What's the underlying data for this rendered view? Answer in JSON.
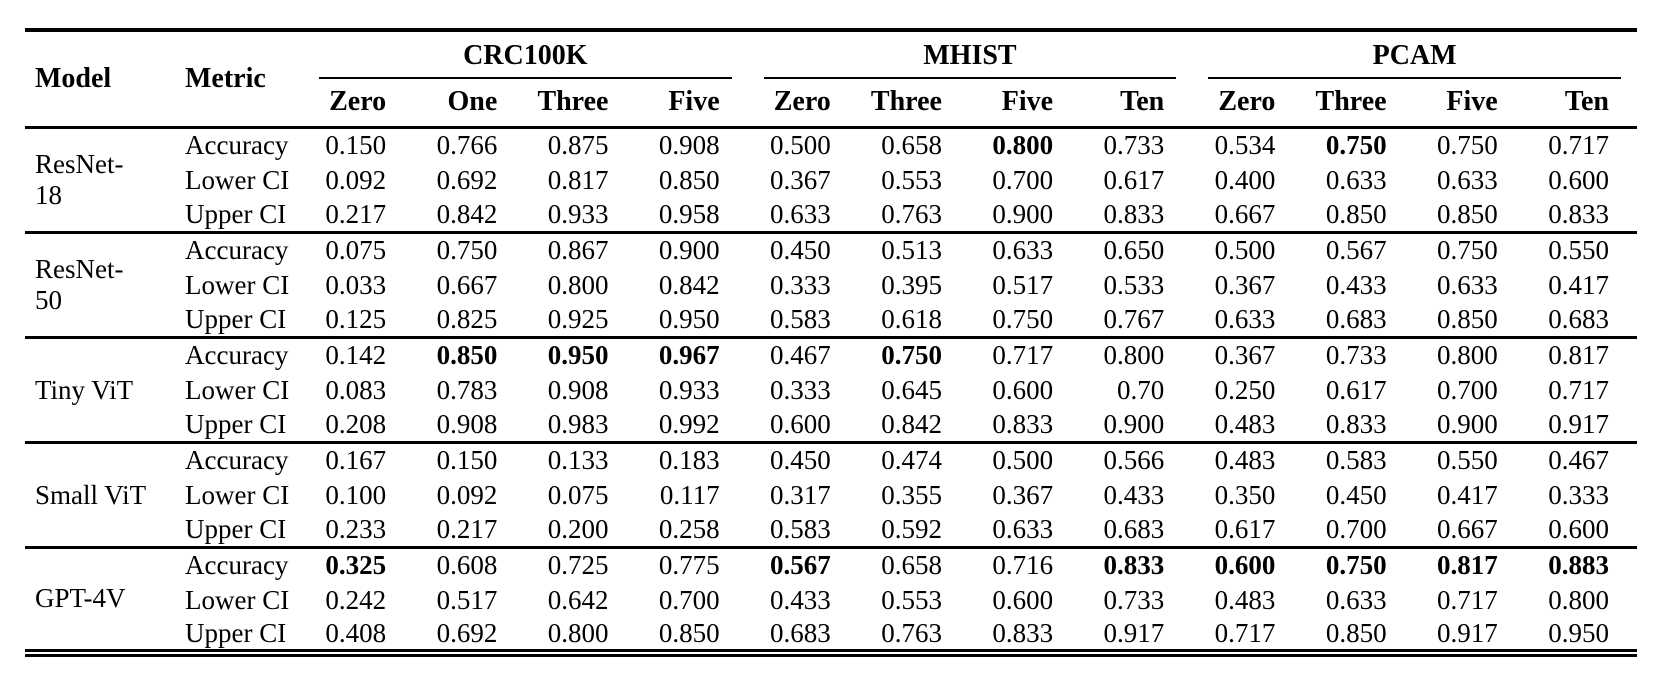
{
  "page": {
    "background_color": "#ffffff",
    "text_color": "#000000"
  },
  "table": {
    "header": {
      "model": "Model",
      "metric": "Metric"
    },
    "groups": [
      {
        "label": "CRC100K",
        "shots": [
          "Zero",
          "One",
          "Three",
          "Five"
        ]
      },
      {
        "label": "MHIST",
        "shots": [
          "Zero",
          "Three",
          "Five",
          "Ten"
        ]
      },
      {
        "label": "PCAM",
        "shots": [
          "Zero",
          "Three",
          "Five",
          "Ten"
        ]
      }
    ],
    "blocks": [
      {
        "model": "ResNet-18",
        "rows": [
          {
            "metric": "Accuracy",
            "values": [
              "0.150",
              "0.766",
              "0.875",
              "0.908",
              "0.500",
              "0.658",
              "0.800",
              "0.733",
              "0.534",
              "0.750",
              "0.750",
              "0.717"
            ],
            "bold": [
              6,
              9
            ]
          },
          {
            "metric": "Lower CI",
            "values": [
              "0.092",
              "0.692",
              "0.817",
              "0.850",
              "0.367",
              "0.553",
              "0.700",
              "0.617",
              "0.400",
              "0.633",
              "0.633",
              "0.600"
            ],
            "bold": []
          },
          {
            "metric": "Upper CI",
            "values": [
              "0.217",
              "0.842",
              "0.933",
              "0.958",
              "0.633",
              "0.763",
              "0.900",
              "0.833",
              "0.667",
              "0.850",
              "0.850",
              "0.833"
            ],
            "bold": []
          }
        ]
      },
      {
        "model": "ResNet-50",
        "rows": [
          {
            "metric": "Accuracy",
            "values": [
              "0.075",
              "0.750",
              "0.867",
              "0.900",
              "0.450",
              "0.513",
              "0.633",
              "0.650",
              "0.500",
              "0.567",
              "0.750",
              "0.550"
            ],
            "bold": []
          },
          {
            "metric": "Lower CI",
            "values": [
              "0.033",
              "0.667",
              "0.800",
              "0.842",
              "0.333",
              "0.395",
              "0.517",
              "0.533",
              "0.367",
              "0.433",
              "0.633",
              "0.417"
            ],
            "bold": []
          },
          {
            "metric": "Upper CI",
            "values": [
              "0.125",
              "0.825",
              "0.925",
              "0.950",
              "0.583",
              "0.618",
              "0.750",
              "0.767",
              "0.633",
              "0.683",
              "0.850",
              "0.683"
            ],
            "bold": []
          }
        ]
      },
      {
        "model": "Tiny ViT",
        "rows": [
          {
            "metric": "Accuracy",
            "values": [
              "0.142",
              "0.850",
              "0.950",
              "0.967",
              "0.467",
              "0.750",
              "0.717",
              "0.800",
              "0.367",
              "0.733",
              "0.800",
              "0.817"
            ],
            "bold": [
              1,
              2,
              3,
              5
            ]
          },
          {
            "metric": "Lower CI",
            "values": [
              "0.083",
              "0.783",
              "0.908",
              "0.933",
              "0.333",
              "0.645",
              "0.600",
              "0.70",
              "0.250",
              "0.617",
              "0.700",
              "0.717"
            ],
            "bold": []
          },
          {
            "metric": "Upper CI",
            "values": [
              "0.208",
              "0.908",
              "0.983",
              "0.992",
              "0.600",
              "0.842",
              "0.833",
              "0.900",
              "0.483",
              "0.833",
              "0.900",
              "0.917"
            ],
            "bold": []
          }
        ]
      },
      {
        "model": "Small ViT",
        "rows": [
          {
            "metric": "Accuracy",
            "values": [
              "0.167",
              "0.150",
              "0.133",
              "0.183",
              "0.450",
              "0.474",
              "0.500",
              "0.566",
              "0.483",
              "0.583",
              "0.550",
              "0.467"
            ],
            "bold": []
          },
          {
            "metric": "Lower CI",
            "values": [
              "0.100",
              "0.092",
              "0.075",
              "0.117",
              "0.317",
              "0.355",
              "0.367",
              "0.433",
              "0.350",
              "0.450",
              "0.417",
              "0.333"
            ],
            "bold": []
          },
          {
            "metric": "Upper CI",
            "values": [
              "0.233",
              "0.217",
              "0.200",
              "0.258",
              "0.583",
              "0.592",
              "0.633",
              "0.683",
              "0.617",
              "0.700",
              "0.667",
              "0.600"
            ],
            "bold": []
          }
        ]
      },
      {
        "model": "GPT-4V",
        "rows": [
          {
            "metric": "Accuracy",
            "values": [
              "0.325",
              "0.608",
              "0.725",
              "0.775",
              "0.567",
              "0.658",
              "0.716",
              "0.833",
              "0.600",
              "0.750",
              "0.817",
              "0.883"
            ],
            "bold": [
              0,
              4,
              7,
              8,
              9,
              10,
              11
            ]
          },
          {
            "metric": "Lower CI",
            "values": [
              "0.242",
              "0.517",
              "0.642",
              "0.700",
              "0.433",
              "0.553",
              "0.600",
              "0.733",
              "0.483",
              "0.633",
              "0.717",
              "0.800"
            ],
            "bold": []
          },
          {
            "metric": "Upper CI",
            "values": [
              "0.408",
              "0.692",
              "0.800",
              "0.850",
              "0.683",
              "0.763",
              "0.833",
              "0.917",
              "0.717",
              "0.850",
              "0.917",
              "0.950"
            ],
            "bold": []
          }
        ]
      }
    ]
  }
}
